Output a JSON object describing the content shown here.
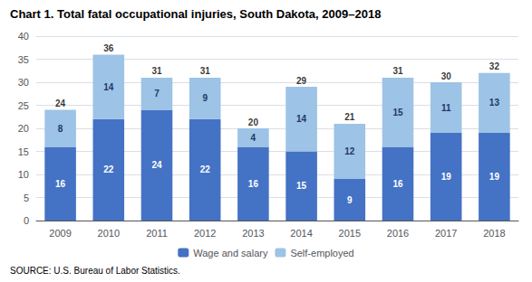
{
  "chart_data": {
    "type": "bar",
    "stacked": true,
    "data_labels": true,
    "grid": true,
    "legend": "bottom",
    "title": "Chart 1. Total fatal occupational injuries, South Dakota, 2009–2018",
    "source": "SOURCE: U.S. Bureau of Labor Statistics.",
    "categories": [
      "2009",
      "2010",
      "2011",
      "2012",
      "2013",
      "2014",
      "2015",
      "2016",
      "2017",
      "2018"
    ],
    "series": [
      {
        "name": "Wage and salary",
        "color": "#4472C4",
        "values": [
          16,
          22,
          24,
          22,
          16,
          15,
          9,
          16,
          19,
          19
        ]
      },
      {
        "name": "Self-employed",
        "color": "#9DC3E6",
        "values": [
          8,
          14,
          7,
          9,
          4,
          14,
          12,
          15,
          11,
          13
        ]
      }
    ],
    "totals": [
      24,
      36,
      31,
      31,
      20,
      29,
      21,
      31,
      30,
      32
    ],
    "ylim": [
      0,
      40
    ],
    "yticks": [
      0,
      5,
      10,
      15,
      20,
      25,
      30,
      35,
      40
    ]
  }
}
